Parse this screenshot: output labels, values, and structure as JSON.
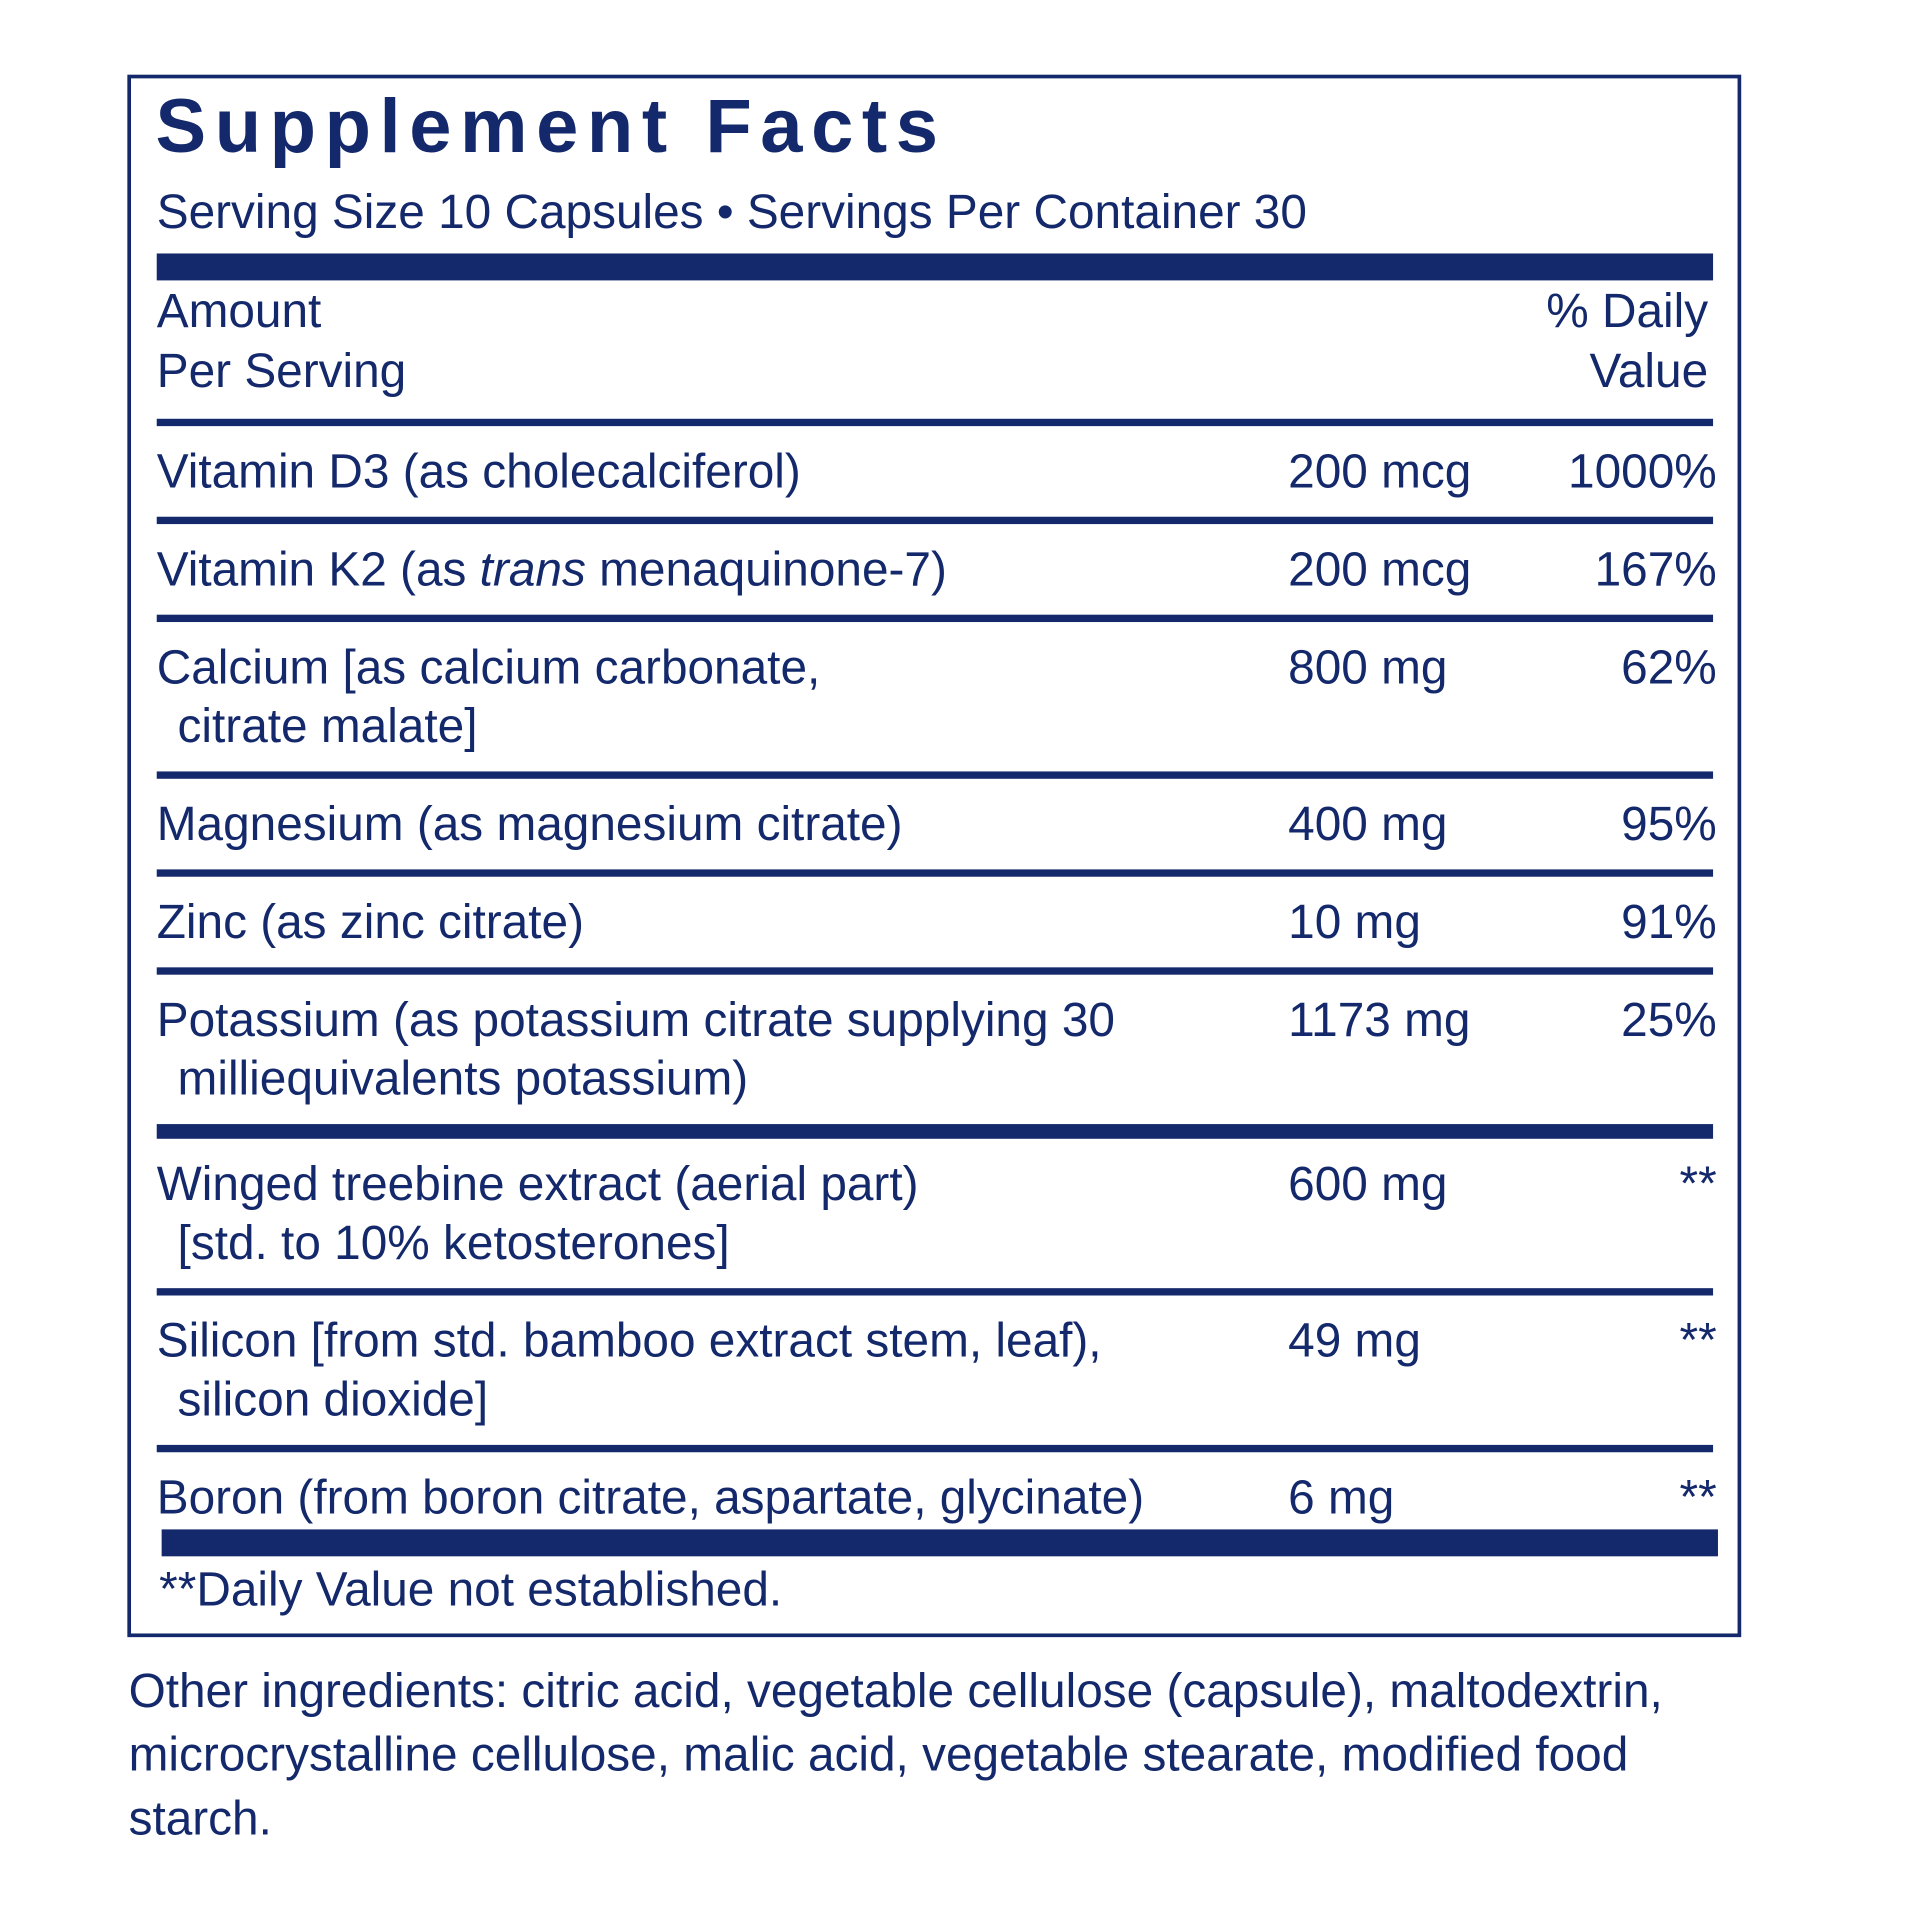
{
  "panel": {
    "title": "Supplement Facts",
    "serving": "Serving Size 10 Capsules • Servings Per Container 30",
    "header_amount": [
      "Amount",
      "Per Serving"
    ],
    "header_dv": [
      "% Daily",
      "Value"
    ],
    "rows": [
      {
        "name": [
          "Vitamin D3 (as cholecalciferol)"
        ],
        "amount": "200 mcg",
        "dv": "1000%"
      },
      {
        "name": [
          [
            {
              "text": "Vitamin K2 (as "
            },
            {
              "text": "trans",
              "italic": true
            },
            {
              "text": " menaquinone-7)"
            }
          ]
        ],
        "amount": "200 mcg",
        "dv": "167%"
      },
      {
        "name": [
          "Calcium [as calcium carbonate,",
          "citrate malate]"
        ],
        "amount": "800 mg",
        "dv": "62%"
      },
      {
        "name": [
          "Magnesium (as magnesium citrate)"
        ],
        "amount": "400 mg",
        "dv": "95%"
      },
      {
        "name": [
          "Zinc (as zinc citrate)"
        ],
        "amount": "10 mg",
        "dv": "91%"
      },
      {
        "name": [
          "Potassium (as potassium citrate supplying 30",
          "milliequivalents potassium)"
        ],
        "amount": "1173 mg",
        "dv": "25%"
      },
      {
        "name": [
          "Winged treebine extract (aerial part)",
          "[std. to 10% ketosterones]"
        ],
        "amount": "600 mg",
        "dv": "**"
      },
      {
        "name": [
          "Silicon [from std. bamboo extract stem, leaf),",
          "silicon dioxide]"
        ],
        "amount": "49 mg",
        "dv": "**"
      },
      {
        "name": [
          "Boron (from boron citrate, aspartate, glycinate)"
        ],
        "amount": "6 mg",
        "dv": "**"
      }
    ],
    "footnote": "**Daily Value not established."
  },
  "other_ingredients": [
    "Other ingredients: citric acid, vegetable cellulose (capsule), maltodextrin,",
    "microcrystalline cellulose, malic acid, vegetable stearate, modified food",
    "starch."
  ]
}
